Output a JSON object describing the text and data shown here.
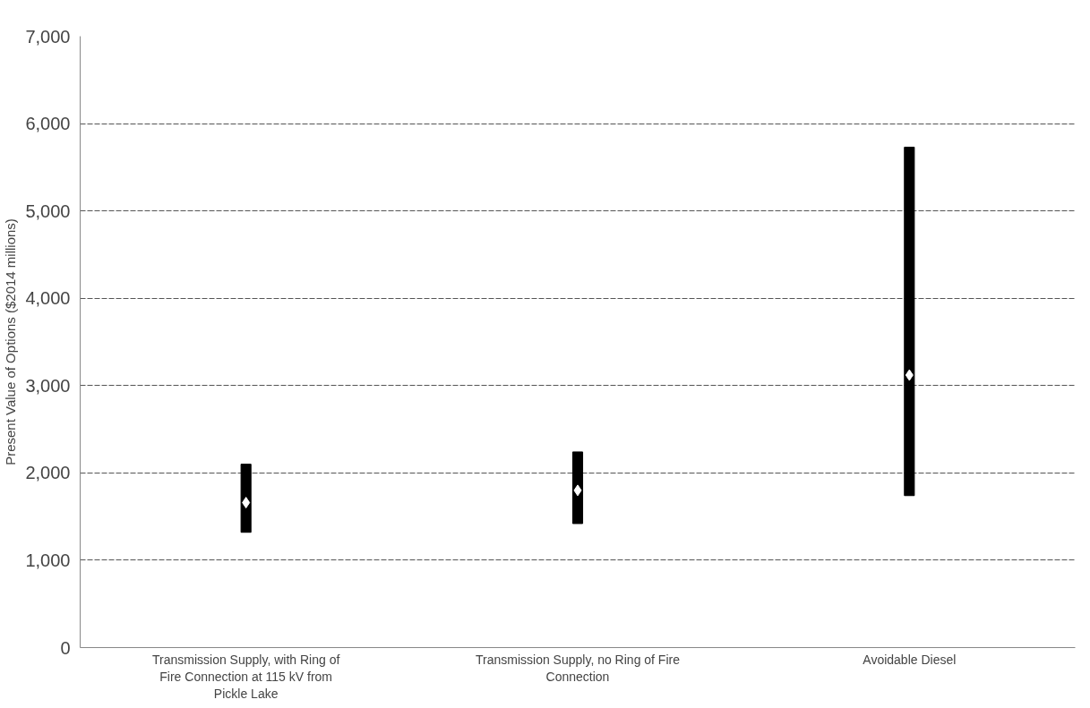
{
  "chart_data": {
    "type": "bar",
    "ylabel": "Present Value of Options ($2014 millions)",
    "categories": [
      "Transmission Supply, with Ring of Fire Connection at 115 kV from Pickle Lake",
      "Transmission Supply, no Ring of Fire Connection",
      "Avoidable Diesel"
    ],
    "series": [
      {
        "color": "#000000",
        "base": [
          1320,
          1420,
          1740
        ],
        "values": [
          780,
          820,
          3990
        ]
      },
      {
        "type": "scatter",
        "color": "#ffffff",
        "marker": "diamond",
        "x": [
          "Transmission Supply, with Ring of Fire Connection at 115 kV from Pickle Lake",
          "Transmission Supply, no Ring of Fire Connection",
          "Avoidable Diesel"
        ],
        "values": [
          1660,
          1800,
          3120
        ]
      }
    ],
    "ylim": [
      0,
      7000
    ],
    "yticks": [
      0,
      {
        "value": 1000,
        "label": "1,000"
      },
      {
        "value": 2000,
        "label": "2,000"
      },
      {
        "value": 3000,
        "label": "3,000"
      },
      {
        "value": 4000,
        "label": "4,000"
      },
      {
        "value": 5000,
        "label": "5,000"
      },
      {
        "value": 6000,
        "label": "6,000"
      },
      {
        "value": 7000,
        "label": "7,000"
      }
    ],
    "grid": "y"
  }
}
